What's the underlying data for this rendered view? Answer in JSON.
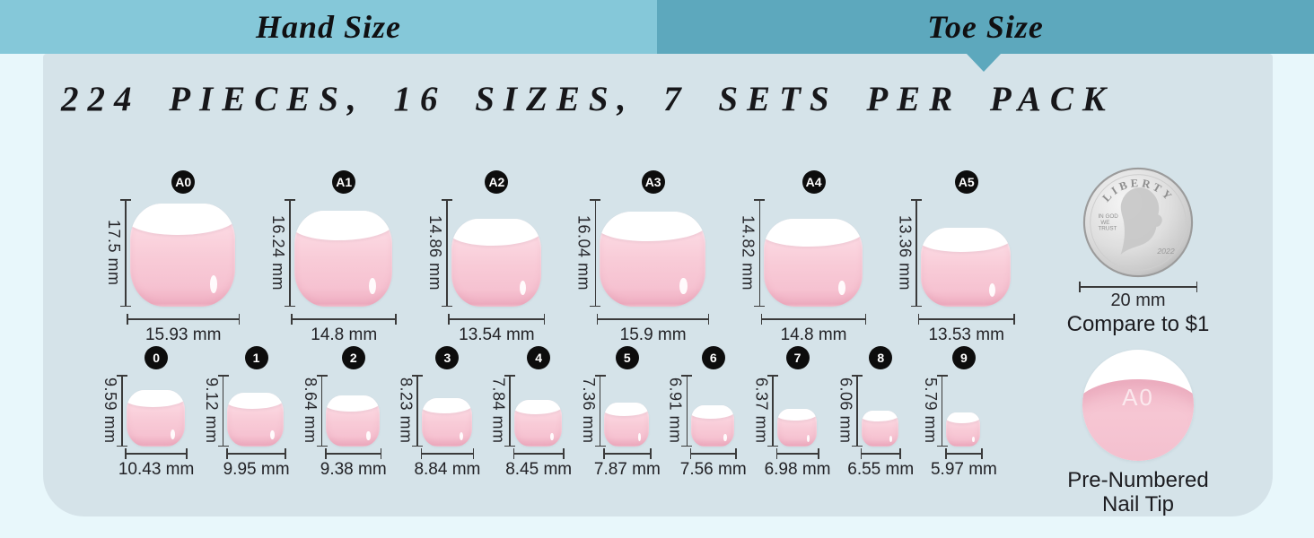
{
  "tabs": [
    {
      "label": "Hand Size"
    },
    {
      "label": "Toe Size"
    }
  ],
  "title": "224 PIECES, 16 SIZES, 7 SETS PER PACK",
  "size_rows": [
    {
      "name": "letter-sizes",
      "items": [
        {
          "label": "A0",
          "height": "17.5 mm",
          "width": "15.93 mm"
        },
        {
          "label": "A1",
          "height": "16.24 mm",
          "width": "14.8 mm"
        },
        {
          "label": "A2",
          "height": "14.86 mm",
          "width": "13.54 mm"
        },
        {
          "label": "A3",
          "height": "16.04 mm",
          "width": "15.9 mm"
        },
        {
          "label": "A4",
          "height": "14.82 mm",
          "width": "14.8 mm"
        },
        {
          "label": "A5",
          "height": "13.36 mm",
          "width": "13.53 mm"
        }
      ]
    },
    {
      "name": "number-sizes",
      "items": [
        {
          "label": "0",
          "height": "9.59 mm",
          "width": "10.43 mm"
        },
        {
          "label": "1",
          "height": "9.12 mm",
          "width": "9.95 mm"
        },
        {
          "label": "2",
          "height": "8.64 mm",
          "width": "9.38 mm"
        },
        {
          "label": "3",
          "height": "8.23 mm",
          "width": "8.84 mm"
        },
        {
          "label": "4",
          "height": "7.84 mm",
          "width": "8.45 mm"
        },
        {
          "label": "5",
          "height": "7.36 mm",
          "width": "7.87 mm"
        },
        {
          "label": "6",
          "height": "6.91 mm",
          "width": "7.56 mm"
        },
        {
          "label": "7",
          "height": "6.37 mm",
          "width": "6.98 mm"
        },
        {
          "label": "8",
          "height": "6.06 mm",
          "width": "6.55 mm"
        },
        {
          "label": "9",
          "height": "5.79 mm",
          "width": "5.97 mm"
        }
      ]
    }
  ],
  "coin": {
    "top_text": "LIBERTY",
    "motto_line1": "IN GOD",
    "motto_line2": "WE",
    "motto_line3": "TRUST",
    "year": "2022",
    "width_label": "20 mm",
    "caption": "Compare to $1"
  },
  "pre_numbered": {
    "nail_label": "A0",
    "caption_line1": "Pre-Numbered",
    "caption_line2": "Nail Tip"
  },
  "colors": {
    "background": "#e8f7fb",
    "panel": "#d5e3e9",
    "hand_tab": "#85c8d9",
    "toe_tab": "#5da8bd",
    "nail_pink": "#f8cbd7",
    "badge_black": "#0d0d0d",
    "measure_line": "#3a3a3a",
    "ink": "#17171a"
  }
}
